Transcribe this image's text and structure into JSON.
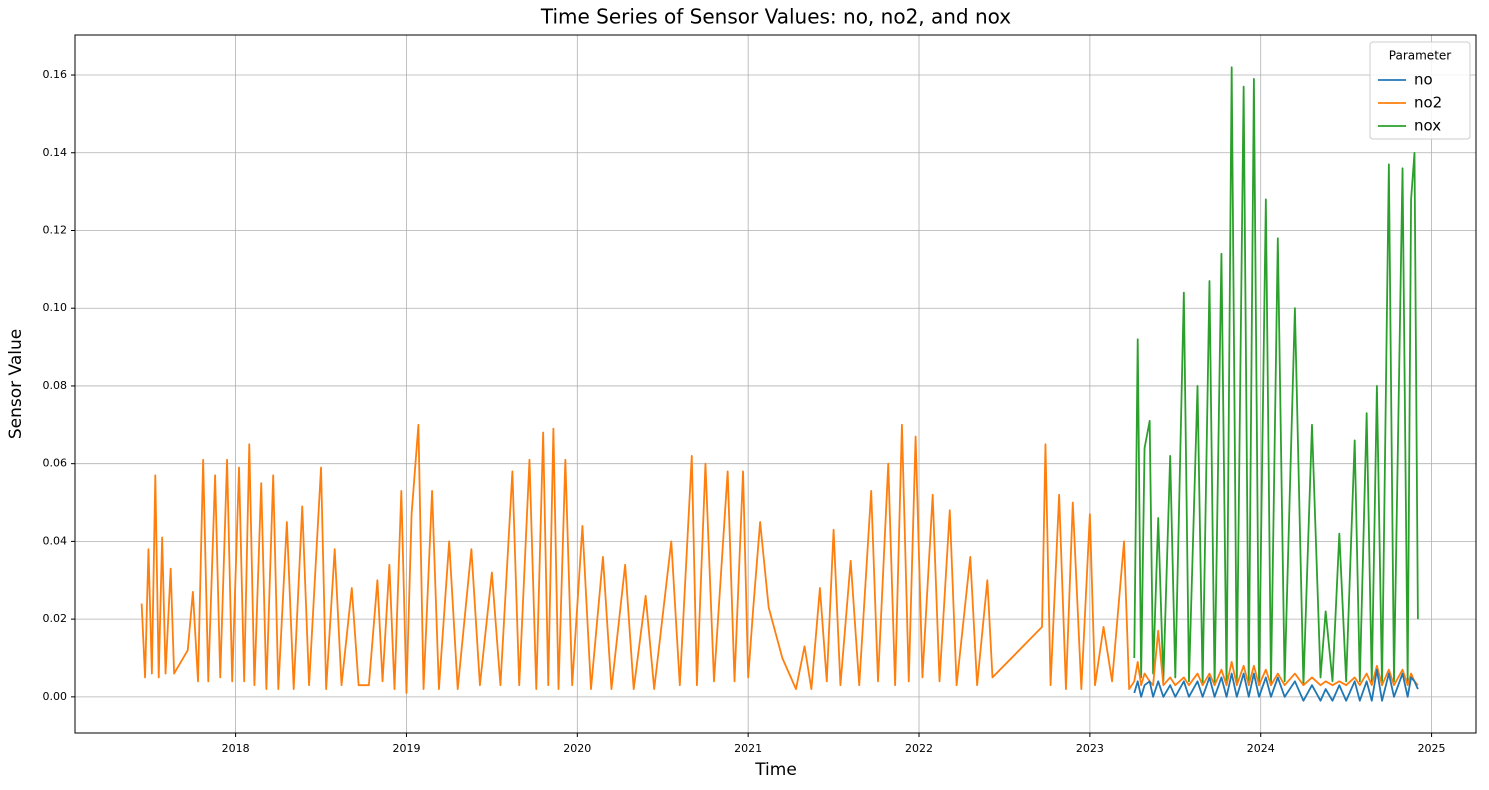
{
  "chart_data": {
    "type": "line",
    "title": "Time Series of Sensor Values: no, no2, and nox",
    "xlabel": "Time",
    "ylabel": "Sensor Value",
    "legend_title": "Parameter",
    "legend": "upper right",
    "grid": true,
    "xlim": [
      2017.06,
      2025.26
    ],
    "xticks": [
      2018,
      2019,
      2020,
      2021,
      2022,
      2023,
      2024,
      2025
    ],
    "ylim": [
      -0.0093,
      0.1703
    ],
    "yticks": [
      {
        "value": 0,
        "label": "0.00"
      },
      {
        "value": 0.02,
        "label": "0.02"
      },
      {
        "value": 0.04,
        "label": "0.04"
      },
      {
        "value": 0.06,
        "label": "0.06"
      },
      {
        "value": 0.08,
        "label": "0.08"
      },
      {
        "value": 0.1,
        "label": "0.10"
      },
      {
        "value": 0.12,
        "label": "0.12"
      },
      {
        "value": 0.14,
        "label": "0.14"
      },
      {
        "value": 0.16,
        "label": "0.16"
      }
    ],
    "x": [
      2017.45,
      2017.47,
      2017.49,
      2017.51,
      2017.53,
      2017.55,
      2017.57,
      2017.59,
      2017.62,
      2017.64,
      2017.72,
      2017.75,
      2017.78,
      2017.81,
      2017.84,
      2017.88,
      2017.91,
      2017.95,
      2017.98,
      2018.02,
      2018.05,
      2018.08,
      2018.11,
      2018.15,
      2018.18,
      2018.22,
      2018.25,
      2018.3,
      2018.34,
      2018.39,
      2018.43,
      2018.5,
      2018.53,
      2018.58,
      2018.62,
      2018.68,
      2018.72,
      2018.78,
      2018.83,
      2018.86,
      2018.9,
      2018.93,
      2018.97,
      2019.0,
      2019.03,
      2019.07,
      2019.1,
      2019.15,
      2019.19,
      2019.25,
      2019.3,
      2019.38,
      2019.43,
      2019.5,
      2019.55,
      2019.62,
      2019.66,
      2019.72,
      2019.76,
      2019.8,
      2019.83,
      2019.86,
      2019.89,
      2019.93,
      2019.97,
      2020.03,
      2020.08,
      2020.15,
      2020.2,
      2020.28,
      2020.33,
      2020.4,
      2020.45,
      2020.55,
      2020.6,
      2020.67,
      2020.7,
      2020.75,
      2020.8,
      2020.88,
      2020.92,
      2020.97,
      2021.0,
      2021.03,
      2021.07,
      2021.12,
      2021.2,
      2021.28,
      2021.33,
      2021.37,
      2021.42,
      2021.46,
      2021.5,
      2021.54,
      2021.6,
      2021.65,
      2021.72,
      2021.76,
      2021.82,
      2021.86,
      2021.9,
      2021.94,
      2021.98,
      2022.02,
      2022.08,
      2022.12,
      2022.18,
      2022.22,
      2022.3,
      2022.34,
      2022.4,
      2022.43,
      2022.72,
      2022.74,
      2022.77,
      2022.82,
      2022.86,
      2022.9,
      2022.95,
      2023.0,
      2023.03,
      2023.08,
      2023.13,
      2023.2,
      2023.23,
      2023.26,
      2023.28,
      2023.3,
      2023.32,
      2023.35,
      2023.37,
      2023.4,
      2023.43,
      2023.47,
      2023.5,
      2023.55,
      2023.58,
      2023.63,
      2023.66,
      2023.7,
      2023.73,
      2023.77,
      2023.8,
      2023.83,
      2023.86,
      2023.9,
      2023.93,
      2023.96,
      2023.99,
      2024.03,
      2024.06,
      2024.1,
      2024.14,
      2024.2,
      2024.25,
      2024.3,
      2024.35,
      2024.38,
      2024.42,
      2024.46,
      2024.5,
      2024.55,
      2024.58,
      2024.62,
      2024.65,
      2024.68,
      2024.71,
      2024.75,
      2024.78,
      2024.83,
      2024.86,
      2024.88,
      2024.9,
      2024.92
    ],
    "series": [
      {
        "name": "no",
        "color": "#1f77b4",
        "values": [
          null,
          null,
          null,
          null,
          null,
          null,
          null,
          null,
          null,
          null,
          null,
          null,
          null,
          null,
          null,
          null,
          null,
          null,
          null,
          null,
          null,
          null,
          null,
          null,
          null,
          null,
          null,
          null,
          null,
          null,
          null,
          null,
          null,
          null,
          null,
          null,
          null,
          null,
          null,
          null,
          null,
          null,
          null,
          null,
          null,
          null,
          null,
          null,
          null,
          null,
          null,
          null,
          null,
          null,
          null,
          null,
          null,
          null,
          null,
          null,
          null,
          null,
          null,
          null,
          null,
          null,
          null,
          null,
          null,
          null,
          null,
          null,
          null,
          null,
          null,
          null,
          null,
          null,
          null,
          null,
          null,
          null,
          null,
          null,
          null,
          null,
          null,
          null,
          null,
          null,
          null,
          null,
          null,
          null,
          null,
          null,
          null,
          null,
          null,
          null,
          null,
          null,
          null,
          null,
          null,
          null,
          null,
          null,
          null,
          null,
          null,
          null,
          null,
          null,
          null,
          null,
          null,
          null,
          null,
          null,
          null,
          null,
          null,
          null,
          null,
          0.001,
          0.004,
          0,
          0.003,
          0.004,
          0,
          0.004,
          0,
          0.003,
          0,
          0.004,
          0,
          0.004,
          0,
          0.005,
          0,
          0.005,
          0,
          0.006,
          0,
          0.006,
          0,
          0.006,
          0,
          0.005,
          0,
          0.005,
          0,
          0.004,
          -0.001,
          0.003,
          -0.001,
          0.002,
          -0.001,
          0.003,
          -0.001,
          0.004,
          -0.001,
          0.004,
          -0.001,
          0.007,
          -0.001,
          0.006,
          0,
          0.006,
          0,
          0.005,
          0.004,
          0.002
        ]
      },
      {
        "name": "no2",
        "color": "#ff7f0e",
        "values": [
          0.024,
          0.005,
          0.038,
          0.006,
          0.057,
          0.005,
          0.041,
          0.006,
          0.033,
          0.006,
          0.012,
          0.027,
          0.004,
          0.061,
          0.004,
          0.057,
          0.005,
          0.061,
          0.004,
          0.059,
          0.004,
          0.065,
          0.003,
          0.055,
          0.002,
          0.057,
          0.002,
          0.045,
          0.002,
          0.049,
          0.003,
          0.059,
          0.002,
          0.038,
          0.003,
          0.028,
          0.003,
          0.003,
          0.03,
          0.004,
          0.034,
          0.002,
          0.053,
          0.001,
          0.047,
          0.07,
          0.002,
          0.053,
          0.002,
          0.04,
          0.002,
          0.038,
          0.003,
          0.032,
          0.003,
          0.058,
          0.003,
          0.061,
          0.002,
          0.068,
          0.003,
          0.069,
          0.002,
          0.061,
          0.003,
          0.044,
          0.002,
          0.036,
          0.002,
          0.034,
          0.002,
          0.026,
          0.002,
          0.04,
          0.003,
          0.062,
          0.003,
          0.06,
          0.004,
          0.058,
          0.004,
          0.058,
          0.005,
          0.023,
          0.045,
          0.023,
          0.01,
          0.002,
          0.013,
          0.002,
          0.028,
          0.004,
          0.043,
          0.003,
          0.035,
          0.003,
          0.053,
          0.004,
          0.06,
          0.003,
          0.07,
          0.004,
          0.067,
          0.005,
          0.052,
          0.004,
          0.048,
          0.003,
          0.036,
          0.003,
          0.03,
          0.005,
          0.018,
          0.065,
          0.003,
          0.052,
          0.002,
          0.05,
          0.002,
          0.047,
          0.003,
          0.018,
          0.004,
          0.04,
          0.002,
          0.004,
          0.009,
          0.003,
          0.006,
          0.004,
          0.003,
          0.017,
          0.003,
          0.005,
          0.003,
          0.005,
          0.003,
          0.006,
          0.003,
          0.006,
          0.003,
          0.007,
          0.003,
          0.009,
          0.003,
          0.008,
          0.003,
          0.008,
          0.003,
          0.007,
          0.003,
          0.006,
          0.003,
          0.006,
          0.003,
          0.005,
          0.003,
          0.004,
          0.003,
          0.004,
          0.003,
          0.005,
          0.003,
          0.006,
          0.003,
          0.008,
          0.003,
          0.007,
          0.003,
          0.007,
          0.003,
          0.006,
          0.004,
          0.003
        ]
      },
      {
        "name": "nox",
        "color": "#2ca02c",
        "values": [
          null,
          null,
          null,
          null,
          null,
          null,
          null,
          null,
          null,
          null,
          null,
          null,
          null,
          null,
          null,
          null,
          null,
          null,
          null,
          null,
          null,
          null,
          null,
          null,
          null,
          null,
          null,
          null,
          null,
          null,
          null,
          null,
          null,
          null,
          null,
          null,
          null,
          null,
          null,
          null,
          null,
          null,
          null,
          null,
          null,
          null,
          null,
          null,
          null,
          null,
          null,
          null,
          null,
          null,
          null,
          null,
          null,
          null,
          null,
          null,
          null,
          null,
          null,
          null,
          null,
          null,
          null,
          null,
          null,
          null,
          null,
          null,
          null,
          null,
          null,
          null,
          null,
          null,
          null,
          null,
          null,
          null,
          null,
          null,
          null,
          null,
          null,
          null,
          null,
          null,
          null,
          null,
          null,
          null,
          null,
          null,
          null,
          null,
          null,
          null,
          null,
          null,
          null,
          null,
          null,
          null,
          null,
          null,
          null,
          null,
          null,
          null,
          null,
          null,
          null,
          null,
          null,
          null,
          null,
          null,
          null,
          null,
          null,
          null,
          null,
          0.01,
          0.092,
          0.005,
          0.064,
          0.071,
          0.006,
          0.046,
          0.004,
          0.062,
          0.005,
          0.104,
          0.004,
          0.08,
          0.003,
          0.107,
          0.003,
          0.114,
          0.003,
          0.162,
          0.004,
          0.157,
          0.003,
          0.159,
          0.003,
          0.128,
          0.003,
          0.118,
          0.004,
          0.1,
          0.003,
          0.07,
          0.005,
          0.022,
          0.004,
          0.042,
          0.004,
          0.066,
          0.004,
          0.073,
          0.004,
          0.08,
          0.003,
          0.137,
          0.004,
          0.136,
          0.004,
          0.128,
          0.14,
          0.02
        ]
      }
    ]
  }
}
